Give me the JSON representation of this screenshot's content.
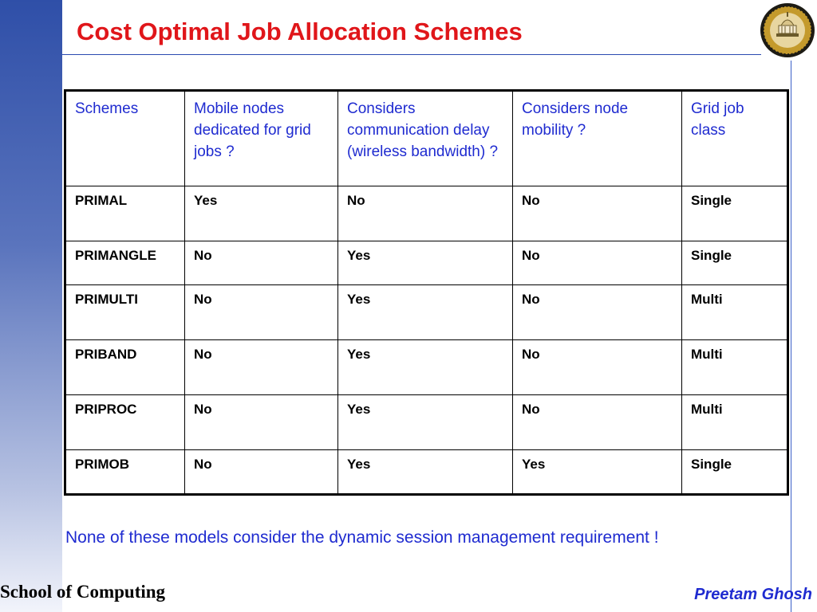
{
  "slide": {
    "title": "Cost Optimal Job Allocation Schemes",
    "footnote": "None of these models consider the dynamic session management requirement !",
    "footer_left": "School of Computing",
    "footer_right": "Preetam Ghosh",
    "logo_icon": "university-seal-icon",
    "colors": {
      "title": "#e0161a",
      "header_text": "#1f2bd0",
      "accent_blue": "#2f4fa8"
    }
  },
  "table": {
    "headers": [
      "Schemes",
      "Mobile nodes dedicated for grid jobs ?",
      "Considers communication delay (wireless bandwidth) ?",
      "Considers node mobility ?",
      "Grid job class"
    ],
    "rows": [
      [
        "PRIMAL",
        "Yes",
        "No",
        "No",
        "Single"
      ],
      [
        "PRIMANGLE",
        "No",
        "Yes",
        "No",
        "Single"
      ],
      [
        "PRIMULTI",
        "No",
        "Yes",
        "No",
        "Multi"
      ],
      [
        "PRIBAND",
        "No",
        "Yes",
        "No",
        "Multi"
      ],
      [
        "PRIPROC",
        "No",
        "Yes",
        "No",
        "Multi"
      ],
      [
        "PRIMOB",
        "No",
        "Yes",
        "Yes",
        "Single"
      ]
    ]
  }
}
